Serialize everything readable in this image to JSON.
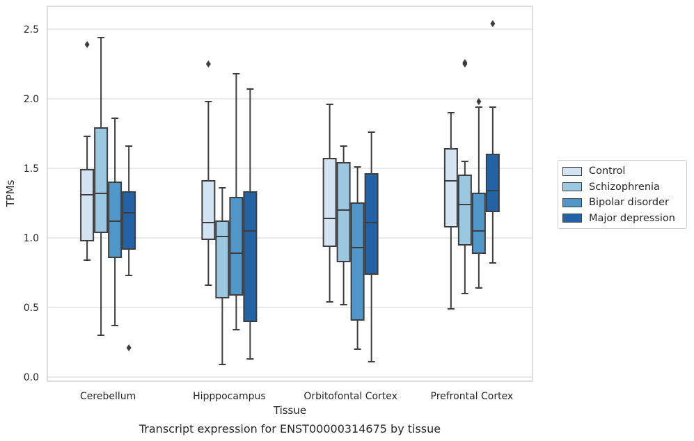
{
  "chart_data": {
    "type": "box",
    "title": "",
    "caption": "Transcript expression for ENST00000314675 by tissue",
    "xlabel": "Tissue",
    "ylabel": "TPMs",
    "ylim": [
      -0.03,
      2.67
    ],
    "yticks": [
      0.0,
      0.5,
      1.0,
      1.5,
      2.0,
      2.5
    ],
    "ytick_labels": [
      "0.0",
      "0.5",
      "1.0",
      "1.5",
      "2.0",
      "2.5"
    ],
    "grid": "horizontal",
    "legend_position": "right",
    "categories": [
      "Cerebellum",
      "Hipppocampus",
      "Orbitofontal Cortex",
      "Prefrontal Cortex"
    ],
    "series": [
      {
        "name": "Control",
        "color": "#d3e3f2",
        "boxes": [
          {
            "whisker_low": 0.84,
            "q1": 0.98,
            "median": 1.31,
            "q3": 1.49,
            "whisker_high": 1.73,
            "outliers": [
              2.39
            ]
          },
          {
            "whisker_low": 0.66,
            "q1": 0.99,
            "median": 1.11,
            "q3": 1.41,
            "whisker_high": 1.98,
            "outliers": [
              2.25
            ]
          },
          {
            "whisker_low": 0.54,
            "q1": 0.94,
            "median": 1.14,
            "q3": 1.57,
            "whisker_high": 1.96,
            "outliers": []
          },
          {
            "whisker_low": 0.49,
            "q1": 1.08,
            "median": 1.41,
            "q3": 1.64,
            "whisker_high": 1.9,
            "outliers": []
          }
        ]
      },
      {
        "name": "Schizophrenia",
        "color": "#9cc7e0",
        "boxes": [
          {
            "whisker_low": 0.3,
            "q1": 1.04,
            "median": 1.32,
            "q3": 1.79,
            "whisker_high": 2.44,
            "outliers": []
          },
          {
            "whisker_low": 0.09,
            "q1": 0.57,
            "median": 1.01,
            "q3": 1.12,
            "whisker_high": 1.36,
            "outliers": []
          },
          {
            "whisker_low": 0.52,
            "q1": 0.83,
            "median": 1.2,
            "q3": 1.54,
            "whisker_high": 1.66,
            "outliers": []
          },
          {
            "whisker_low": 0.6,
            "q1": 0.95,
            "median": 1.24,
            "q3": 1.45,
            "whisker_high": 1.55,
            "outliers": [
              2.25,
              2.26
            ]
          }
        ]
      },
      {
        "name": "Bipolar disorder",
        "color": "#5096c8",
        "boxes": [
          {
            "whisker_low": 0.37,
            "q1": 0.86,
            "median": 1.12,
            "q3": 1.4,
            "whisker_high": 1.86,
            "outliers": []
          },
          {
            "whisker_low": 0.34,
            "q1": 0.59,
            "median": 0.89,
            "q3": 1.29,
            "whisker_high": 2.18,
            "outliers": []
          },
          {
            "whisker_low": 0.2,
            "q1": 0.41,
            "median": 0.93,
            "q3": 1.25,
            "whisker_high": 1.51,
            "outliers": []
          },
          {
            "whisker_low": 0.64,
            "q1": 0.89,
            "median": 1.05,
            "q3": 1.32,
            "whisker_high": 1.94,
            "outliers": [
              1.98
            ]
          }
        ]
      },
      {
        "name": "Major depression",
        "color": "#2362a5",
        "boxes": [
          {
            "whisker_low": 0.73,
            "q1": 0.92,
            "median": 1.18,
            "q3": 1.33,
            "whisker_high": 1.66,
            "outliers": [
              0.21
            ]
          },
          {
            "whisker_low": 0.13,
            "q1": 0.4,
            "median": 1.05,
            "q3": 1.33,
            "whisker_high": 2.07,
            "outliers": []
          },
          {
            "whisker_low": 0.11,
            "q1": 0.74,
            "median": 1.11,
            "q3": 1.46,
            "whisker_high": 1.76,
            "outliers": []
          },
          {
            "whisker_low": 0.82,
            "q1": 1.19,
            "median": 1.34,
            "q3": 1.6,
            "whisker_high": 1.94,
            "outliers": [
              2.54
            ]
          }
        ]
      }
    ]
  }
}
